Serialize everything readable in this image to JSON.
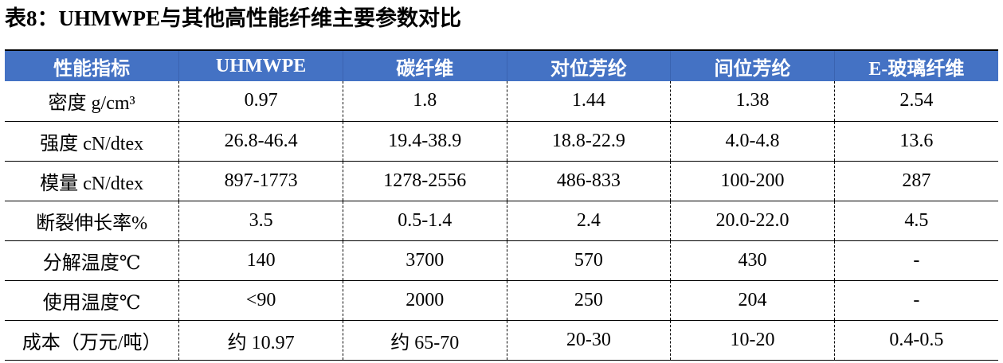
{
  "caption": "表8：UHMWPE与其他高性能纤维主要参数对比",
  "table": {
    "headers": [
      "性能指标",
      "UHMWPE",
      "碳纤维",
      "对位芳纶",
      "间位芳纶",
      "E-玻璃纤维"
    ],
    "rows": [
      [
        "密度 g/cm³",
        "0.97",
        "1.8",
        "1.44",
        "1.38",
        "2.54"
      ],
      [
        "强度 cN/dtex",
        "26.8-46.4",
        "19.4-38.9",
        "18.8-22.9",
        "4.0-4.8",
        "13.6"
      ],
      [
        "模量 cN/dtex",
        "897-1773",
        "1278-2556",
        "486-833",
        "100-200",
        "287"
      ],
      [
        "断裂伸长率%",
        "3.5",
        "0.5-1.4",
        "2.4",
        "20.0-22.0",
        "4.5"
      ],
      [
        "分解温度℃",
        "140",
        "3700",
        "570",
        "430",
        "-"
      ],
      [
        "使用温度℃",
        "<90",
        "2000",
        "250",
        "204",
        "-"
      ],
      [
        "成本（万元/吨）",
        "约 10.97",
        "约 65-70",
        "20-30",
        "10-20",
        "0.4-0.5"
      ]
    ]
  },
  "colors": {
    "header_bg": "#4472c4",
    "header_text": "#ffffff",
    "body_text": "#000000"
  }
}
